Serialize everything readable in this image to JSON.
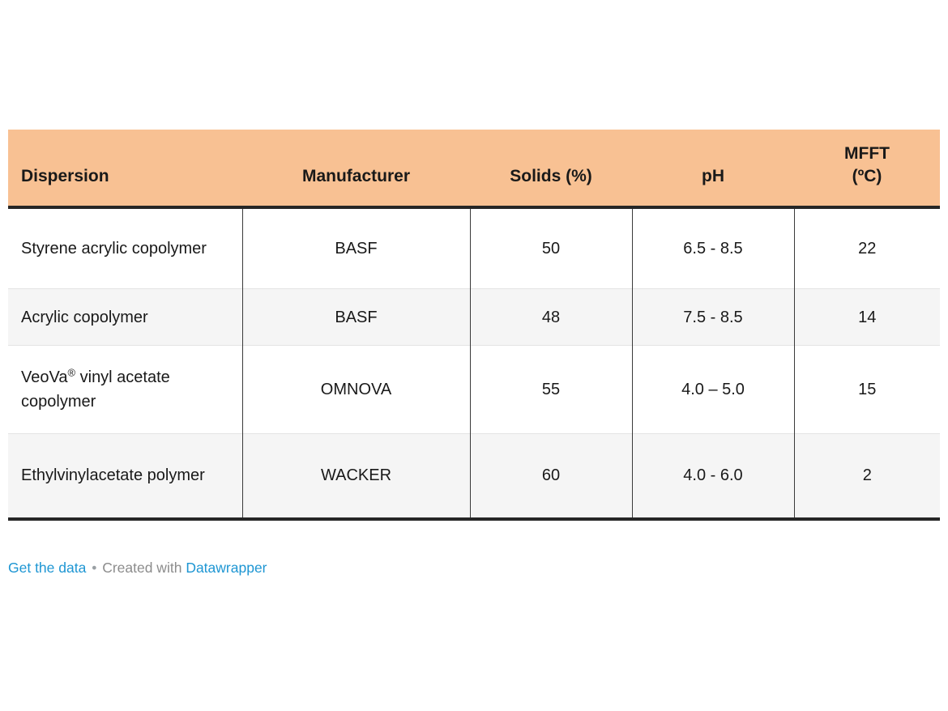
{
  "chart_data": {
    "type": "table",
    "columns": [
      "Dispersion",
      "Manufacturer",
      "Solids (%)",
      "pH",
      "MFFT (ºC)"
    ],
    "rows": [
      [
        "Styrene acrylic copolymer",
        "BASF",
        "50",
        "6.5 - 8.5",
        "22"
      ],
      [
        "Acrylic copolymer",
        "BASF",
        "48",
        "7.5 - 8.5",
        "14"
      ],
      [
        "VeoVa® vinyl acetate copolymer",
        "OMNOVA",
        "55",
        "4.0 – 5.0",
        "15"
      ],
      [
        "Ethylvinylacetate polymer",
        "WACKER",
        "60",
        "4.0 - 6.0",
        "2"
      ]
    ]
  },
  "table": {
    "header": {
      "dispersion": "Dispersion",
      "manufacturer": "Manufacturer",
      "solids": "Solids (%)",
      "ph": "pH",
      "mfft": "MFFT\n(ºC)"
    },
    "rows": [
      [
        "Styrene acrylic copolymer",
        "BASF",
        "50",
        "6.5 - 8.5",
        "22"
      ],
      [
        "Acrylic copolymer",
        "BASF",
        "48",
        "7.5 - 8.5",
        "14"
      ],
      [
        "VeoVa® vinyl acetate copolymer",
        "OMNOVA",
        "55",
        "4.0 – 5.0",
        "15"
      ],
      [
        "Ethylvinylacetate polymer",
        "WACKER",
        "60",
        "4.0 - 6.0",
        "2"
      ]
    ]
  },
  "footer": {
    "get_data_label": "Get the data",
    "separator": "•",
    "created_with": "Created with",
    "datawrapper_label": "Datawrapper"
  },
  "colors": {
    "header_bg": "#F8C193",
    "stripe_bg": "#F5F5F5",
    "heavy_border": "#262626",
    "column_divider": "#3a3a3a",
    "row_divider": "#e4e4e4",
    "link_blue": "#1E96D3",
    "footer_gray": "#8c8c8c",
    "text": "#191919"
  }
}
